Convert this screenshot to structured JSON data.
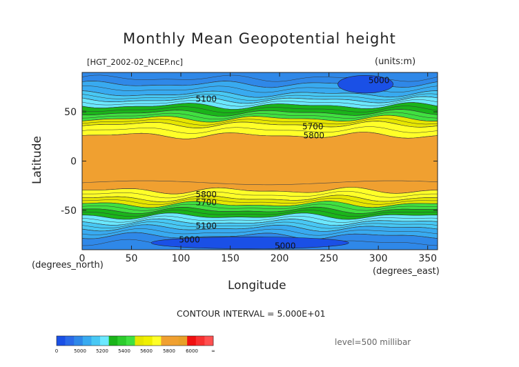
{
  "chart_data": {
    "type": "heatmap",
    "title": "Monthly Mean Geopotential height",
    "subtitle": "[HGT_2002-02_NCEP.nc]",
    "units": "(units:m)",
    "xlabel": "Longitude",
    "ylabel": "Latitude",
    "x_unit_left": "(degrees_north)",
    "x_unit_right": "(degrees_east)",
    "xlim": [
      0,
      360
    ],
    "ylim": [
      -90,
      90
    ],
    "x_ticks": [
      0,
      50,
      100,
      150,
      200,
      250,
      300,
      350
    ],
    "y_ticks": [
      50,
      0,
      -50
    ],
    "contour_interval_text": "CONTOUR INTERVAL = 5.000E+01",
    "level_text": "level=500 millibar",
    "contour_labels": [
      {
        "text": "5000",
        "lon": 290,
        "lat": 82
      },
      {
        "text": "5100",
        "lon": 115,
        "lat": 63
      },
      {
        "text": "5700",
        "lon": 223,
        "lat": 35
      },
      {
        "text": "5800",
        "lon": 224,
        "lat": 26
      },
      {
        "text": "5800",
        "lon": 115,
        "lat": -34
      },
      {
        "text": "5700",
        "lon": 115,
        "lat": -42
      },
      {
        "text": "5100",
        "lon": 115,
        "lat": -66
      },
      {
        "text": "5000",
        "lon": 98,
        "lat": -80
      },
      {
        "text": "5000",
        "lon": 195,
        "lat": -86
      }
    ],
    "colorbar": {
      "colors": [
        "#1a50e6",
        "#2a6ae8",
        "#2f88e8",
        "#38aaf0",
        "#48c8f4",
        "#6be8ff",
        "#1ab41a",
        "#2ccc2c",
        "#40e040",
        "#e6e600",
        "#f0f000",
        "#ffff28",
        "#f0a030",
        "#f0a030",
        "#e8a028",
        "#f01010",
        "#f83030",
        "#ff5050"
      ],
      "tick_labels": [
        "0",
        "5000",
        "5200",
        "5400",
        "5600",
        "5800",
        "6000",
        "∞"
      ]
    },
    "bands": [
      {
        "lat_from": 90,
        "lat_to": 78,
        "color": "#2f88e8"
      },
      {
        "lat_from": 78,
        "lat_to": 68,
        "color": "#38aaf0"
      },
      {
        "lat_from": 68,
        "lat_to": 62,
        "color": "#48c8f4"
      },
      {
        "lat_from": 62,
        "lat_to": 56,
        "color": "#6be8ff"
      },
      {
        "lat_from": 56,
        "lat_to": 49,
        "color": "#1ab41a"
      },
      {
        "lat_from": 49,
        "lat_to": 43,
        "color": "#40e040"
      },
      {
        "lat_from": 43,
        "lat_to": 37,
        "color": "#e6e600"
      },
      {
        "lat_from": 37,
        "lat_to": 26,
        "color": "#ffff28"
      },
      {
        "lat_from": 26,
        "lat_to": -30,
        "color": "#f0a030"
      },
      {
        "lat_from": -30,
        "lat_to": -38,
        "color": "#ffff28"
      },
      {
        "lat_from": -38,
        "lat_to": -44,
        "color": "#e6e600"
      },
      {
        "lat_from": -44,
        "lat_to": -50,
        "color": "#40e040"
      },
      {
        "lat_from": -50,
        "lat_to": -56,
        "color": "#1ab41a"
      },
      {
        "lat_from": -56,
        "lat_to": -62,
        "color": "#6be8ff"
      },
      {
        "lat_from": -62,
        "lat_to": -68,
        "color": "#48c8f4"
      },
      {
        "lat_from": -68,
        "lat_to": -76,
        "color": "#38aaf0"
      },
      {
        "lat_from": -76,
        "lat_to": -90,
        "color": "#2f88e8"
      }
    ],
    "lows": [
      {
        "lon": 287,
        "lat": 78,
        "rlon": 28,
        "rlat": 9,
        "color": "#1a50e6"
      },
      {
        "lon": 170,
        "lat": -83,
        "rlon": 100,
        "rlat": 6,
        "color": "#1a50e6"
      }
    ]
  }
}
